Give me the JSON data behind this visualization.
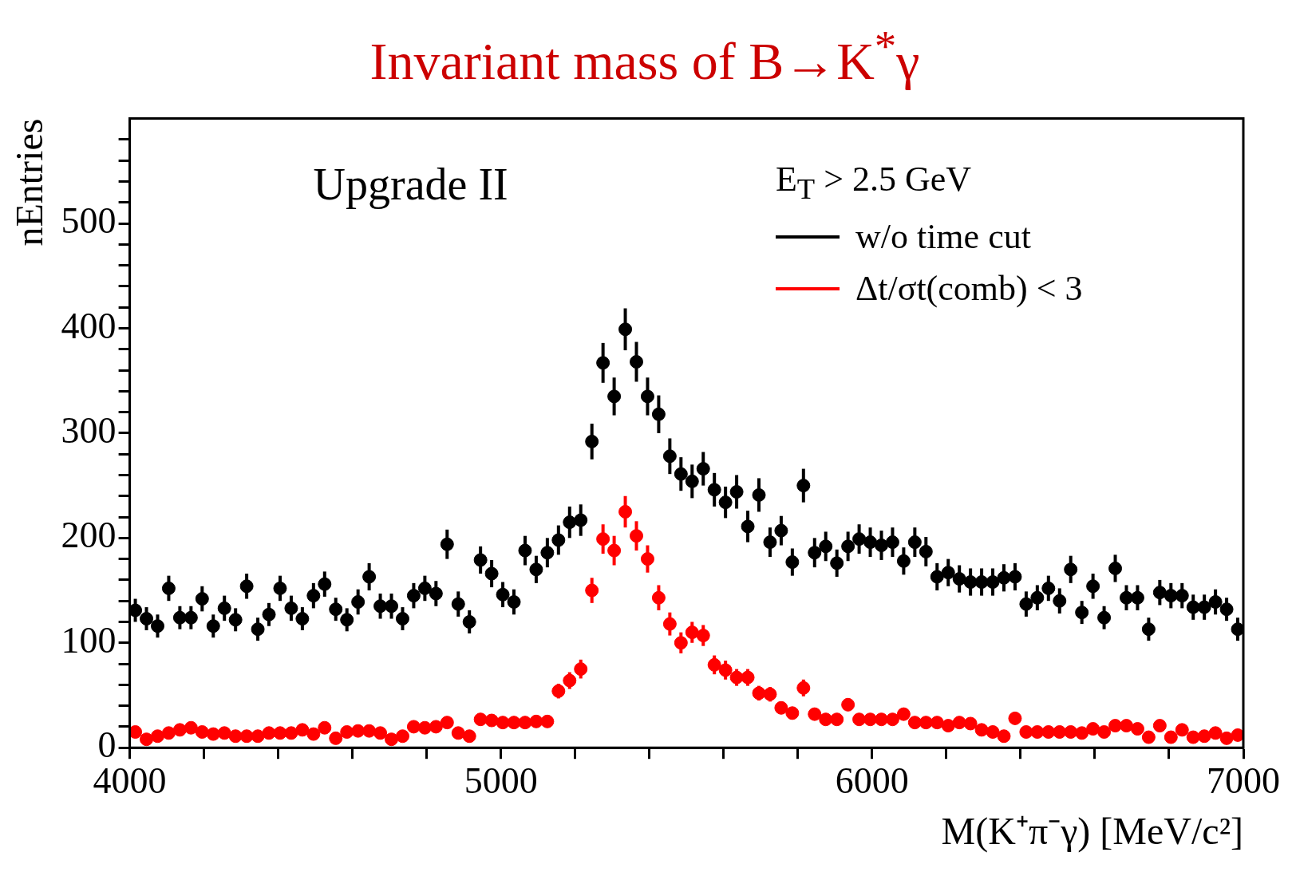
{
  "chart_data": {
    "type": "scatter",
    "title": "Invariant mass of B→K$^{*}$γ",
    "xlabel": "M(K⁺π⁻γ) [MeV/c²]",
    "ylabel": "nEntries",
    "legend_title": "E$_{T}$ > 2.5 GeV",
    "annotations": [
      "Upgrade II"
    ],
    "legend": "top right",
    "marker": "circle",
    "grid": false,
    "xlim": [
      4000,
      7000
    ],
    "ylim": [
      0,
      600
    ],
    "xticks": [
      4000,
      {
        "value": 4200,
        "label": null
      },
      {
        "value": 4400,
        "label": null
      },
      {
        "value": 4600,
        "label": null
      },
      {
        "value": 4800,
        "label": null
      },
      5000,
      {
        "value": 5200,
        "label": null
      },
      {
        "value": 5400,
        "label": null
      },
      {
        "value": 5600,
        "label": null
      },
      {
        "value": 5800,
        "label": null
      },
      6000,
      {
        "value": 6200,
        "label": null
      },
      {
        "value": 6400,
        "label": null
      },
      {
        "value": 6600,
        "label": null
      },
      {
        "value": 6800,
        "label": null
      },
      7000
    ],
    "yticks": [
      0,
      {
        "value": 20,
        "label": null
      },
      {
        "value": 40,
        "label": null
      },
      {
        "value": 60,
        "label": null
      },
      {
        "value": 80,
        "label": null
      },
      100,
      {
        "value": 120,
        "label": null
      },
      {
        "value": 140,
        "label": null
      },
      {
        "value": 160,
        "label": null
      },
      {
        "value": 180,
        "label": null
      },
      200,
      {
        "value": 220,
        "label": null
      },
      {
        "value": 240,
        "label": null
      },
      {
        "value": 260,
        "label": null
      },
      {
        "value": 280,
        "label": null
      },
      300,
      {
        "value": 320,
        "label": null
      },
      {
        "value": 340,
        "label": null
      },
      {
        "value": 360,
        "label": null
      },
      {
        "value": 380,
        "label": null
      },
      400,
      {
        "value": 420,
        "label": null
      },
      {
        "value": 440,
        "label": null
      },
      {
        "value": 460,
        "label": null
      },
      {
        "value": 480,
        "label": null
      },
      500,
      {
        "value": 520,
        "label": null
      },
      {
        "value": 540,
        "label": null
      },
      {
        "value": 560,
        "label": null
      },
      {
        "value": 580,
        "label": null
      }
    ],
    "x": [
      4015,
      4045,
      4075,
      4105,
      4135,
      4165,
      4195,
      4225,
      4255,
      4285,
      4315,
      4345,
      4375,
      4405,
      4435,
      4465,
      4495,
      4525,
      4555,
      4585,
      4615,
      4645,
      4675,
      4705,
      4735,
      4765,
      4795,
      4825,
      4855,
      4885,
      4915,
      4945,
      4975,
      5005,
      5035,
      5065,
      5095,
      5125,
      5155,
      5185,
      5215,
      5245,
      5275,
      5305,
      5335,
      5365,
      5395,
      5425,
      5455,
      5485,
      5515,
      5545,
      5575,
      5605,
      5635,
      5665,
      5695,
      5725,
      5755,
      5785,
      5815,
      5845,
      5875,
      5905,
      5935,
      5965,
      5995,
      6025,
      6055,
      6085,
      6115,
      6145,
      6175,
      6205,
      6235,
      6265,
      6295,
      6325,
      6355,
      6385,
      6415,
      6445,
      6475,
      6505,
      6535,
      6565,
      6595,
      6625,
      6655,
      6685,
      6715,
      6745,
      6775,
      6805,
      6835,
      6865,
      6895,
      6925,
      6955,
      6985
    ],
    "series": [
      {
        "name": "w/o time cut",
        "color": "#000000",
        "values": [
          131,
          123,
          116,
          152,
          124,
          124,
          142,
          116,
          133,
          122,
          154,
          113,
          127,
          152,
          133,
          123,
          145,
          156,
          132,
          122,
          139,
          163,
          135,
          135,
          123,
          145,
          152,
          147,
          194,
          137,
          120,
          179,
          166,
          146,
          139,
          188,
          170,
          186,
          198,
          215,
          217,
          292,
          367,
          335,
          399,
          368,
          335,
          318,
          278,
          261,
          254,
          266,
          246,
          234,
          244,
          211,
          241,
          196,
          207,
          177,
          250,
          186,
          192,
          176,
          192,
          199,
          196,
          193,
          196,
          178,
          196,
          187,
          163,
          167,
          161,
          158,
          158,
          158,
          162,
          163,
          137,
          143,
          152,
          140,
          170,
          129,
          154,
          124,
          171,
          143,
          143,
          113,
          148,
          145,
          145,
          134,
          134,
          139,
          132,
          113
        ],
        "errors": [
          11,
          11,
          11,
          12,
          11,
          11,
          12,
          11,
          12,
          11,
          12,
          11,
          11,
          12,
          12,
          11,
          12,
          12,
          11,
          11,
          12,
          13,
          12,
          12,
          11,
          12,
          12,
          12,
          14,
          12,
          11,
          13,
          13,
          12,
          12,
          14,
          13,
          14,
          14,
          15,
          15,
          17,
          19,
          18,
          20,
          19,
          18,
          18,
          17,
          16,
          16,
          16,
          16,
          15,
          16,
          15,
          16,
          14,
          14,
          13,
          16,
          14,
          14,
          13,
          14,
          14,
          14,
          14,
          14,
          13,
          14,
          14,
          13,
          13,
          13,
          13,
          13,
          13,
          13,
          13,
          12,
          12,
          12,
          12,
          13,
          11,
          12,
          11,
          13,
          12,
          12,
          11,
          12,
          12,
          12,
          12,
          12,
          12,
          11,
          11
        ]
      },
      {
        "name": "Δt/σt(comb) < 3",
        "color": "#ff0000",
        "values": [
          15,
          8,
          11,
          14,
          17,
          19,
          15,
          13,
          14,
          11,
          11,
          11,
          14,
          14,
          14,
          17,
          13,
          19,
          9,
          15,
          16,
          16,
          14,
          8,
          11,
          20,
          19,
          20,
          24,
          14,
          11,
          27,
          26,
          24,
          24,
          24,
          25,
          25,
          54,
          64,
          75,
          150,
          199,
          188,
          225,
          202,
          180,
          143,
          118,
          100,
          110,
          107,
          79,
          74,
          67,
          67,
          52,
          51,
          38,
          33,
          57,
          32,
          27,
          27,
          41,
          27,
          27,
          27,
          27,
          32,
          24,
          24,
          24,
          21,
          24,
          23,
          17,
          15,
          11,
          28,
          15,
          15,
          15,
          15,
          15,
          14,
          18,
          15,
          21,
          21,
          18,
          10,
          21,
          10,
          17,
          10,
          11,
          14,
          9,
          12
        ],
        "errors": [
          4,
          3,
          3,
          4,
          4,
          4,
          4,
          4,
          4,
          3,
          3,
          3,
          4,
          4,
          4,
          4,
          4,
          4,
          3,
          4,
          4,
          4,
          4,
          3,
          3,
          4,
          4,
          4,
          5,
          4,
          3,
          5,
          5,
          5,
          5,
          5,
          5,
          5,
          7,
          8,
          9,
          12,
          14,
          14,
          15,
          14,
          13,
          12,
          11,
          10,
          10,
          10,
          9,
          9,
          8,
          8,
          7,
          7,
          6,
          6,
          8,
          6,
          5,
          5,
          6,
          5,
          5,
          5,
          5,
          6,
          5,
          5,
          5,
          5,
          5,
          5,
          4,
          4,
          3,
          5,
          4,
          4,
          4,
          4,
          4,
          4,
          4,
          4,
          5,
          5,
          4,
          3,
          5,
          3,
          4,
          3,
          3,
          4,
          3,
          3
        ]
      }
    ]
  }
}
